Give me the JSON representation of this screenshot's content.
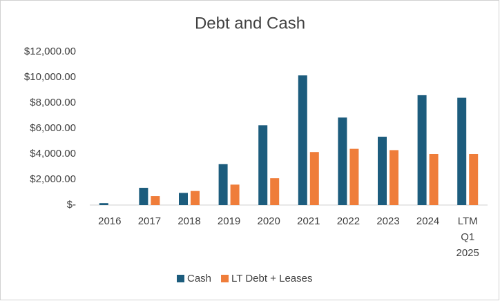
{
  "chart_data": {
    "type": "bar",
    "title": "Debt and Cash",
    "categories": [
      "2016",
      "2017",
      "2018",
      "2019",
      "2020",
      "2021",
      "2022",
      "2023",
      "2024",
      "LTM Q1 2025"
    ],
    "series": [
      {
        "name": "Cash",
        "color": "#1c5c7d",
        "values": [
          150,
          1350,
          950,
          3200,
          6250,
          10150,
          6850,
          5350,
          8600,
          8400
        ]
      },
      {
        "name": "LT Debt + Leases",
        "color": "#ef7d3a",
        "values": [
          0,
          700,
          1100,
          1600,
          2100,
          4150,
          4400,
          4300,
          4000,
          4000
        ]
      }
    ],
    "ylim": [
      0,
      12000
    ],
    "yticks": [
      {
        "value": 0,
        "label": "$-"
      },
      {
        "value": 2000,
        "label": "$2,000.00"
      },
      {
        "value": 4000,
        "label": "$4,000.00"
      },
      {
        "value": 6000,
        "label": "$6,000.00"
      },
      {
        "value": 8000,
        "label": "$8,000.00"
      },
      {
        "value": 10000,
        "label": "$10,000.00"
      },
      {
        "value": 12000,
        "label": "$12,000.00"
      }
    ],
    "grid": false,
    "legend": "bottom"
  }
}
